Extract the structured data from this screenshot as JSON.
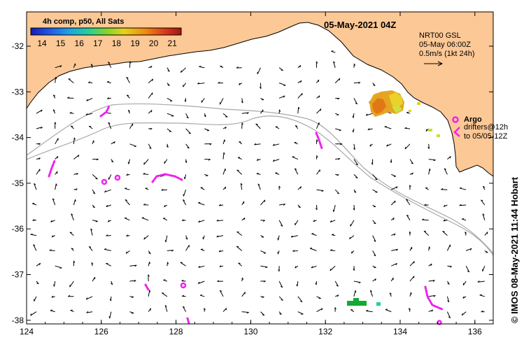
{
  "map": {
    "title": "05-May-2021 04Z",
    "colorbar": {
      "label": "4h comp, p50, All Sats",
      "ticks": [
        "14",
        "15",
        "16",
        "17",
        "18",
        "19",
        "20",
        "21"
      ],
      "colors": [
        "#1b1bb0",
        "#1f55e6",
        "#1ea0e8",
        "#22cfa0",
        "#7fd62a",
        "#e6d21a",
        "#f08a10",
        "#d8341a",
        "#9a1a10"
      ]
    },
    "annotation": {
      "source": "NRT00 GSL",
      "time": "05-May 06:00Z",
      "scale": "0.5m/s (1kt 24h)"
    },
    "legend": {
      "argo": "Argo",
      "drifters": "drifters@12h",
      "drifters_to": "to 05/05-12Z"
    },
    "credit": "© IMOS 08-May-2021 11:44 Hobart",
    "x_ticks": [
      "124",
      "126",
      "128",
      "130",
      "132",
      "134",
      "136"
    ],
    "y_ticks": [
      "-32",
      "-33",
      "-34",
      "-35",
      "-36",
      "-37",
      "-38"
    ],
    "colors": {
      "land": "#fcc896",
      "sea": "#ffffff",
      "shelf": "#a8a8a8",
      "argo": "#ee22ee",
      "drifter_green": "#11aa33"
    }
  }
}
